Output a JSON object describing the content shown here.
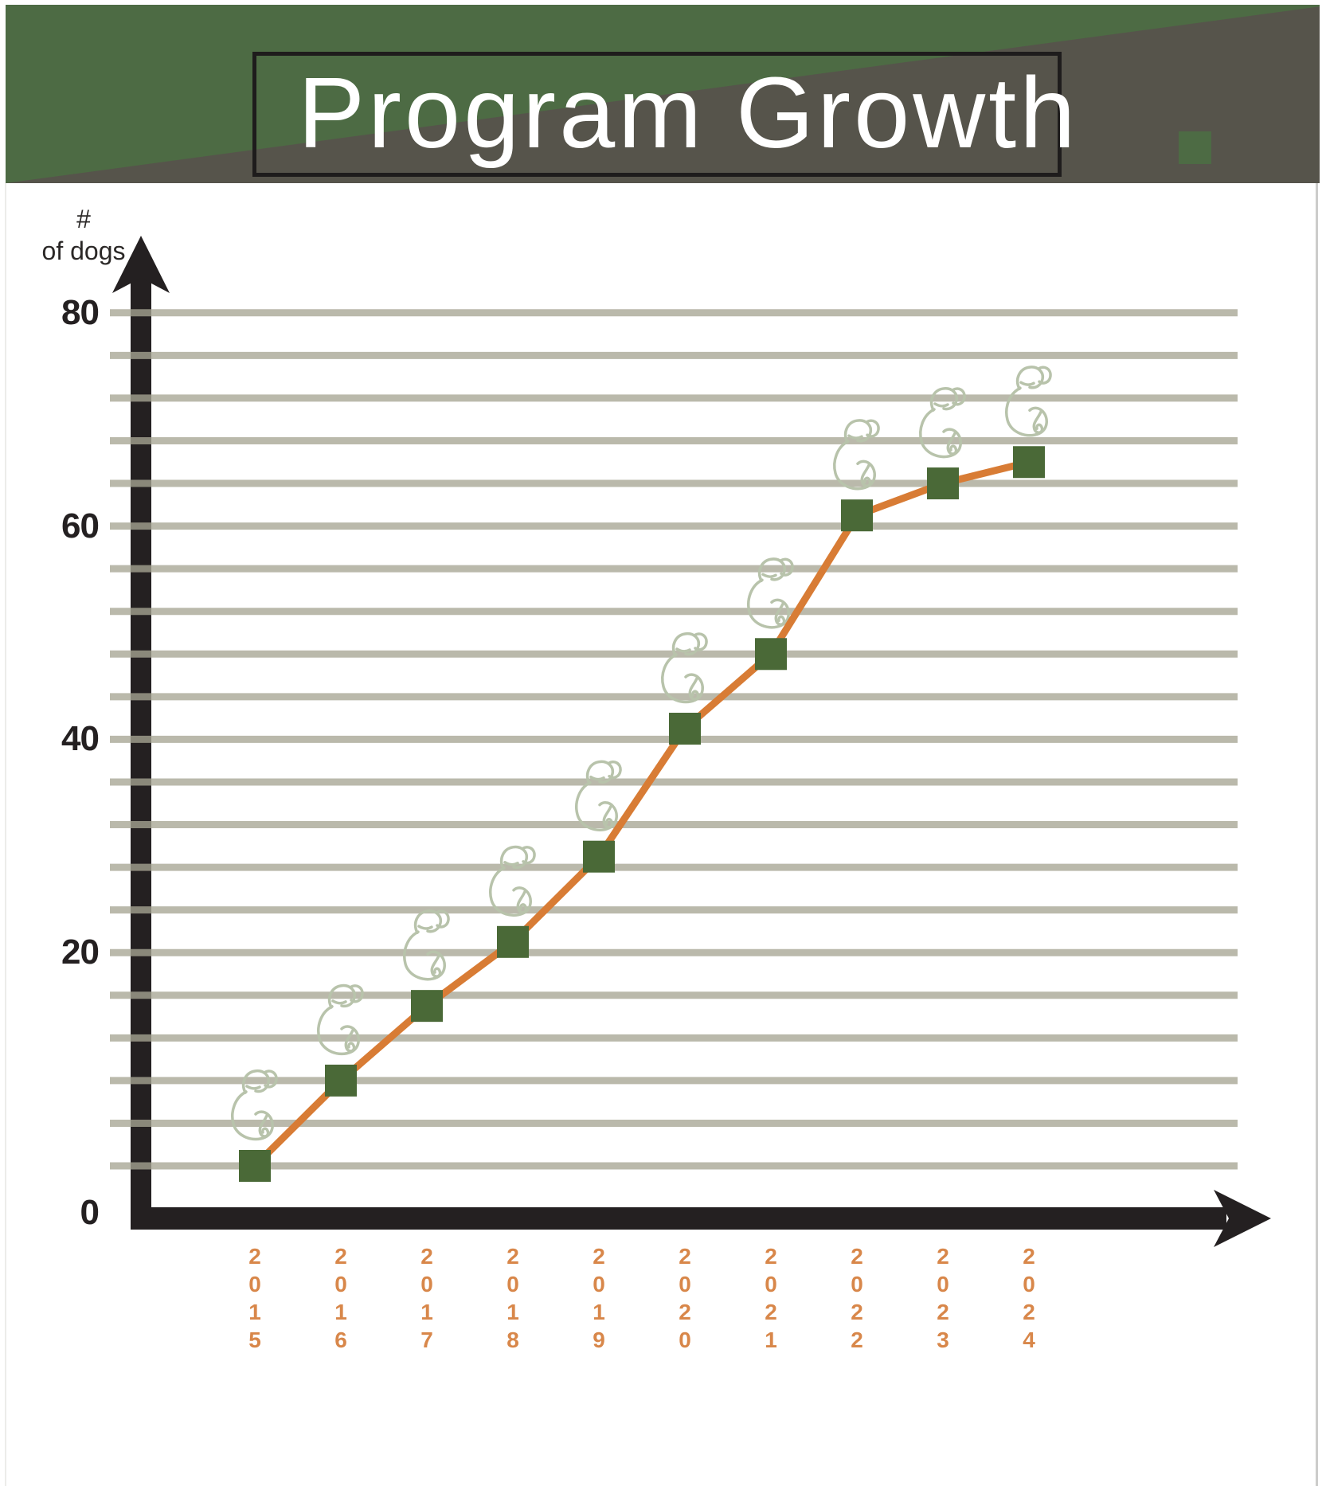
{
  "header": {
    "title": "Program Growth"
  },
  "y_axis": {
    "label_line1": "#",
    "label_line2": "of dogs",
    "ticks": [
      "80",
      "60",
      "40",
      "20",
      "0"
    ]
  },
  "chart_data": {
    "type": "line",
    "title": "Program Growth",
    "ylabel": "# of dogs",
    "xlabel": "",
    "categories": [
      "2015",
      "2016",
      "2017",
      "2018",
      "2019",
      "2020",
      "2021",
      "2022",
      "2023",
      "2024"
    ],
    "values": [
      0,
      8,
      15,
      21,
      29,
      41,
      48,
      61,
      64,
      66
    ],
    "ylim": [
      0,
      80
    ],
    "y_tick_interval": 20,
    "gridline_interval": 4,
    "grid": true,
    "legend": false,
    "marker": "square",
    "point_decoration": "dog-sketch-above-each-point"
  },
  "colors": {
    "header_green": "#4d6b44",
    "header_gray": "#56544b",
    "title_text": "#ffffff",
    "title_box_border": "#1e1c1c",
    "accent_square": "#4d6b44",
    "axis": "#242021",
    "gridline": "#bcbaab",
    "line": "#d87c35",
    "marker": "#4a6937",
    "year_label": "#d8874a",
    "tick_label": "#242021",
    "dog_sketch": "#b8c3ab"
  }
}
